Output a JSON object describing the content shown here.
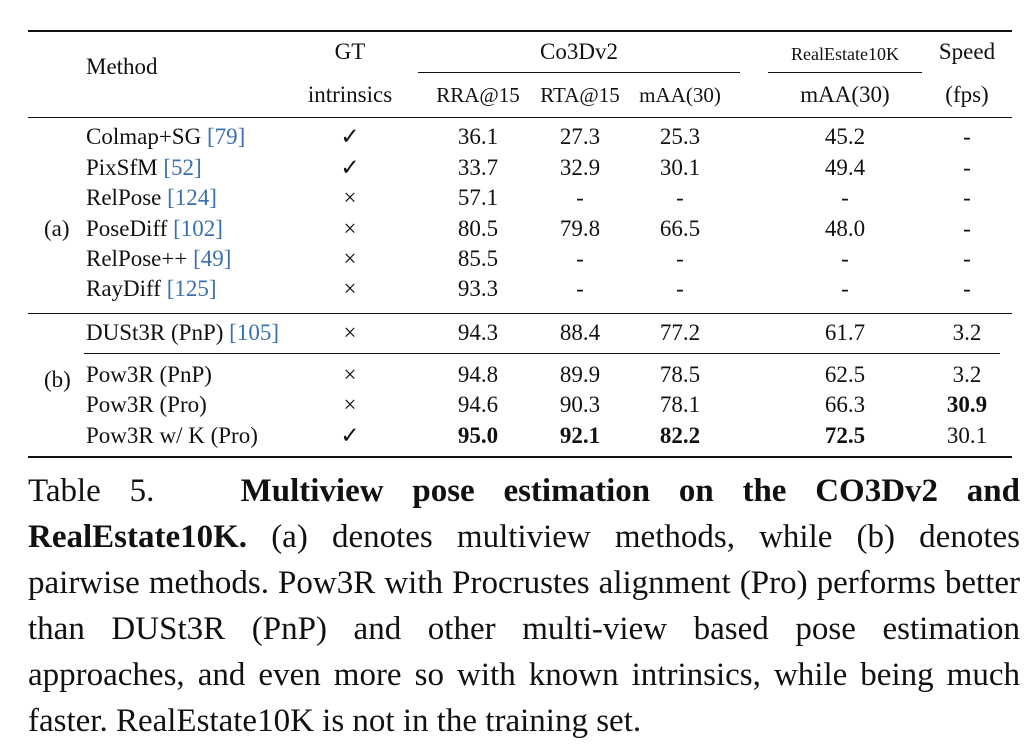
{
  "table": {
    "headers": {
      "method": "Method",
      "gt_line1": "GT",
      "gt_line2": "intrinsics",
      "co3d": "Co3Dv2",
      "rra": "RRA@15",
      "rta": "RTA@15",
      "maa": "mAA(30)",
      "re10k": "RealEstate10K",
      "re10k_sub": "mAA(30)",
      "speed_line1": "Speed",
      "speed_line2": "(fps)"
    },
    "groups": [
      {
        "label": "(a)"
      },
      {
        "label": "(b)"
      }
    ],
    "rows": [
      {
        "name": "Colmap+SG ",
        "cite": "[79]",
        "gt": "✓",
        "rra": "36.1",
        "rta": "27.3",
        "maa": "25.3",
        "re": "45.2",
        "speed": "-"
      },
      {
        "name": "PixSfM ",
        "cite": "[52]",
        "gt": "✓",
        "rra": "33.7",
        "rta": "32.9",
        "maa": "30.1",
        "re": "49.4",
        "speed": "-"
      },
      {
        "name": "RelPose ",
        "cite": "[124]",
        "gt": "×",
        "rra": "57.1",
        "rta": "-",
        "maa": "-",
        "re": "-",
        "speed": "-"
      },
      {
        "name": "PoseDiff ",
        "cite": "[102]",
        "gt": "×",
        "rra": "80.5",
        "rta": "79.8",
        "maa": "66.5",
        "re": "48.0",
        "speed": "-"
      },
      {
        "name": "RelPose++ ",
        "cite": "[49]",
        "gt": "×",
        "rra": "85.5",
        "rta": "-",
        "maa": "-",
        "re": "-",
        "speed": "-"
      },
      {
        "name": "RayDiff ",
        "cite": "[125]",
        "gt": "×",
        "rra": "93.3",
        "rta": "-",
        "maa": "-",
        "re": "-",
        "speed": "-"
      },
      {
        "name": "DUSt3R (PnP) ",
        "cite": "[105]",
        "gt": "×",
        "rra": "94.3",
        "rta": "88.4",
        "maa": "77.2",
        "re": "61.7",
        "speed": "3.2"
      },
      {
        "name": "Pow3R (PnP)",
        "cite": "",
        "gt": "×",
        "rra": "94.8",
        "rta": "89.9",
        "maa": "78.5",
        "re": "62.5",
        "speed": "3.2"
      },
      {
        "name": "Pow3R (Pro)",
        "cite": "",
        "gt": "×",
        "rra": "94.6",
        "rta": "90.3",
        "maa": "78.1",
        "re": "66.3",
        "speed": "30.9"
      },
      {
        "name": "Pow3R w/ K (Pro)",
        "cite": "",
        "gt": "✓",
        "rra": "95.0",
        "rta": "92.1",
        "maa": "82.2",
        "re": "72.5",
        "speed": "30.1"
      }
    ]
  },
  "caption": {
    "label": "Table 5.",
    "bold": "Multiview pose estimation on the CO3Dv2 and RealEstate10K.",
    "text": " (a) denotes multiview methods, while (b) denotes pairwise methods. Pow3R with Procrustes alignment (Pro) performs better than DUSt3R (PnP) and other multi-view based pose estimation approaches, and even more so with known intrinsics, while being much faster. RealEstate10K is not in the training set."
  }
}
